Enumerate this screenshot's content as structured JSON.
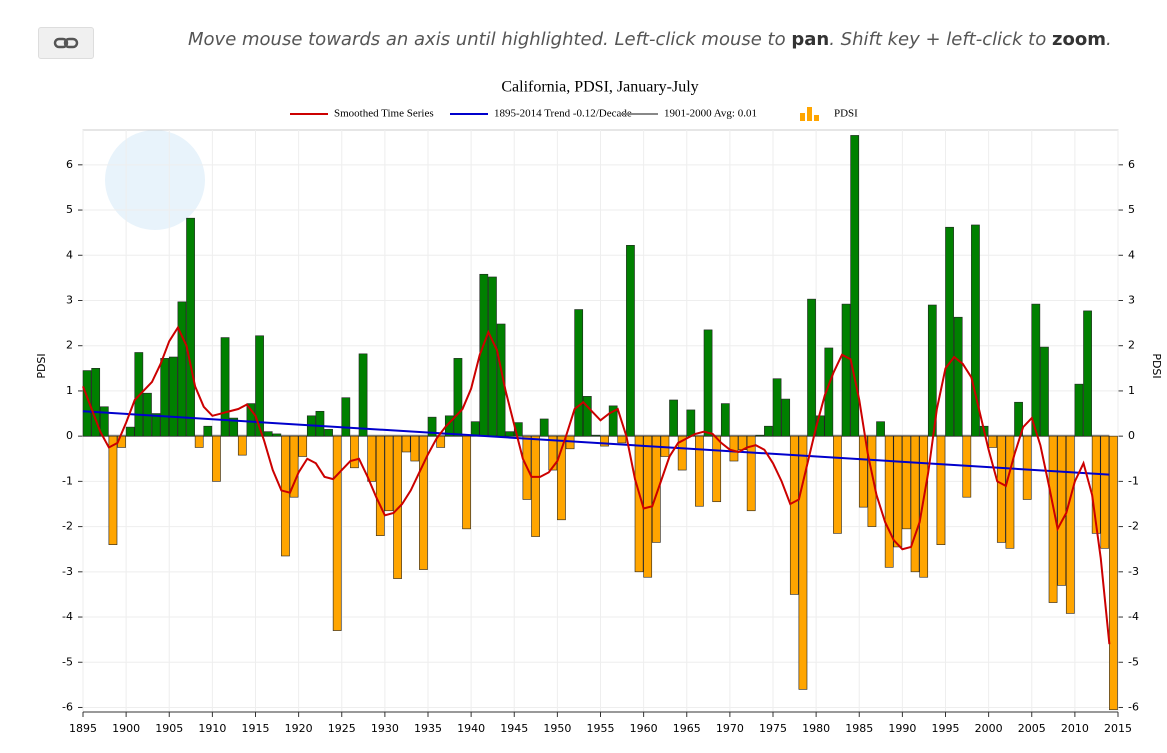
{
  "ui": {
    "hint": [
      "Move mouse towards an axis until highlighted. Left-click mouse to ",
      "pan",
      ". Shift key + left-click to ",
      "zoom",
      "."
    ]
  },
  "chart_data": {
    "type": "bar",
    "title": "California, PDSI, January-July",
    "ylabel": "PDSI",
    "y2label": "PDSI",
    "x": [
      1895,
      1896,
      1897,
      1898,
      1899,
      1900,
      1901,
      1902,
      1903,
      1904,
      1905,
      1906,
      1907,
      1908,
      1909,
      1910,
      1911,
      1912,
      1913,
      1914,
      1915,
      1916,
      1917,
      1918,
      1919,
      1920,
      1921,
      1922,
      1923,
      1924,
      1925,
      1926,
      1927,
      1928,
      1929,
      1930,
      1931,
      1932,
      1933,
      1934,
      1935,
      1936,
      1937,
      1938,
      1939,
      1940,
      1941,
      1942,
      1943,
      1944,
      1945,
      1946,
      1947,
      1948,
      1949,
      1950,
      1951,
      1952,
      1953,
      1954,
      1955,
      1956,
      1957,
      1958,
      1959,
      1960,
      1961,
      1962,
      1963,
      1964,
      1965,
      1966,
      1967,
      1968,
      1969,
      1970,
      1971,
      1972,
      1973,
      1974,
      1975,
      1976,
      1977,
      1978,
      1979,
      1980,
      1981,
      1982,
      1983,
      1984,
      1985,
      1986,
      1987,
      1988,
      1989,
      1990,
      1991,
      1992,
      1993,
      1994,
      1995,
      1996,
      1997,
      1998,
      1999,
      2000,
      2001,
      2002,
      2003,
      2004,
      2005,
      2006,
      2007,
      2008,
      2009,
      2010,
      2011,
      2012,
      2013,
      2014
    ],
    "series": [
      {
        "name": "PDSI",
        "pos_color": "#008000",
        "neg_color": "#ffa500",
        "values": [
          1.45,
          1.5,
          0.65,
          -2.4,
          -0.25,
          0.2,
          1.85,
          0.95,
          0.5,
          1.72,
          1.75,
          2.97,
          4.82,
          -0.25,
          0.22,
          -1.0,
          2.18,
          0.4,
          -0.42,
          0.72,
          2.22,
          0.1,
          0.05,
          -2.65,
          -1.35,
          -0.45,
          0.45,
          0.55,
          0.15,
          -4.3,
          0.85,
          -0.7,
          1.82,
          -1.0,
          -2.2,
          -1.65,
          -3.15,
          -0.35,
          -0.55,
          -2.95,
          0.42,
          -0.25,
          0.45,
          1.72,
          -2.05,
          0.32,
          3.58,
          3.52,
          2.48,
          0.1,
          0.3,
          -1.4,
          -2.22,
          0.38,
          -0.75,
          -1.85,
          -0.28,
          2.8,
          0.88,
          0.02,
          -0.22,
          0.67,
          -0.15,
          4.22,
          -3.0,
          -3.12,
          -2.35,
          -0.45,
          0.8,
          -0.75,
          0.58,
          -1.55,
          2.35,
          -1.45,
          0.72,
          -0.55,
          -0.3,
          -1.65,
          0.02,
          0.22,
          1.27,
          0.82,
          -3.5,
          -5.6,
          3.03,
          0.45,
          1.95,
          -2.15,
          2.92,
          6.65,
          -1.57,
          -2.0,
          0.32,
          -2.9,
          -2.45,
          -2.05,
          -3.0,
          -3.12,
          2.9,
          -2.4,
          4.62,
          2.63,
          -1.35,
          4.67,
          0.22,
          -0.25,
          -2.35,
          -2.48,
          0.75,
          -1.4,
          2.92,
          1.97,
          -3.68,
          -3.3,
          -3.92,
          1.15,
          2.77,
          -2.15,
          -2.48,
          -6.05
        ]
      },
      {
        "name": "Smoothed Time Series",
        "type": "line",
        "color": "#cc0000",
        "values": [
          1.1,
          0.6,
          0.1,
          -0.25,
          -0.15,
          0.3,
          0.8,
          1.0,
          1.2,
          1.6,
          2.1,
          2.4,
          2.0,
          1.1,
          0.65,
          0.45,
          0.5,
          0.55,
          0.6,
          0.7,
          0.45,
          -0.1,
          -0.75,
          -1.2,
          -1.25,
          -0.8,
          -0.5,
          -0.6,
          -0.9,
          -0.95,
          -0.75,
          -0.55,
          -0.5,
          -0.9,
          -1.35,
          -1.75,
          -1.7,
          -1.5,
          -1.2,
          -0.8,
          -0.4,
          -0.05,
          0.2,
          0.4,
          0.6,
          1.05,
          1.8,
          2.3,
          1.9,
          1.0,
          0.25,
          -0.5,
          -0.9,
          -0.9,
          -0.8,
          -0.55,
          0.0,
          0.6,
          0.75,
          0.55,
          0.35,
          0.5,
          0.6,
          0.0,
          -0.95,
          -1.6,
          -1.55,
          -1.0,
          -0.45,
          -0.15,
          -0.05,
          0.05,
          0.1,
          0.05,
          -0.15,
          -0.3,
          -0.35,
          -0.25,
          -0.2,
          -0.3,
          -0.6,
          -1.0,
          -1.5,
          -1.4,
          -0.6,
          0.2,
          0.9,
          1.4,
          1.8,
          1.7,
          0.8,
          -0.4,
          -1.3,
          -1.9,
          -2.3,
          -2.5,
          -2.45,
          -1.9,
          -0.8,
          0.6,
          1.5,
          1.75,
          1.6,
          1.3,
          0.5,
          -0.3,
          -1.0,
          -1.1,
          -0.4,
          0.2,
          0.4,
          -0.2,
          -1.1,
          -2.05,
          -1.7,
          -1.0,
          -0.6,
          -1.3,
          -2.7,
          -4.6
        ]
      },
      {
        "name": "1895-2014 Trend -0.12/Decade",
        "type": "line",
        "color": "#0000cc",
        "x": [
          1895,
          2014
        ],
        "values": [
          0.55,
          -0.85
        ]
      },
      {
        "name": "1901-2000 Avg: 0.01",
        "type": "line",
        "color": "#888888",
        "x": [
          1895,
          2014
        ],
        "values": [
          0.01,
          0.01
        ]
      }
    ],
    "xlim": [
      1895,
      2015
    ],
    "xticks": [
      1895,
      1900,
      1905,
      1910,
      1915,
      1920,
      1925,
      1930,
      1935,
      1940,
      1945,
      1950,
      1955,
      1960,
      1965,
      1970,
      1975,
      1980,
      1985,
      1990,
      1995,
      2000,
      2005,
      2010,
      2015
    ],
    "ylim": [
      -6.1,
      6.77
    ],
    "yticks": [
      -6,
      -5,
      -4,
      -3,
      -2,
      -1,
      0,
      1,
      2,
      3,
      4,
      5,
      6
    ],
    "grid": true
  }
}
